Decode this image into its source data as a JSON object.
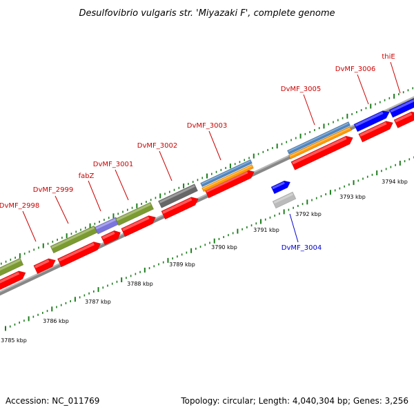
{
  "title": "Desulfovibrio vulgaris str. 'Miyazaki F', complete genome",
  "footer": {
    "accession": "Accession: NC_011769",
    "summary": "Topology: circular; Length: 4,040,304 bp; Genes: 3,256"
  },
  "colors": {
    "gene": "#ff0000",
    "gene_blue": "#0000ff",
    "gene_grey": "#bbbbbb",
    "feature_green": "#7b9a30",
    "feature_purple": "#7a74dd",
    "feature_darkgrey": "#676767",
    "feature_steelblue": "#4f86c0",
    "feature_orange": "#ff9a00",
    "backbone": "#888888",
    "tick": "#1c7d1c",
    "label_red": "#cc0000",
    "label_blue": "#0000cc"
  },
  "scale_labels": [
    "3785 kbp",
    "3786 kbp",
    "3787 kbp",
    "3788 kbp",
    "3789 kbp",
    "3790 kbp",
    "3791 kbp",
    "3792 kbp",
    "3793 kbp",
    "3794 kbp"
  ],
  "gene_labels": [
    {
      "name": "DvMF_2998",
      "color": "red"
    },
    {
      "name": "DvMF_2999",
      "color": "red"
    },
    {
      "name": "fabZ",
      "color": "red"
    },
    {
      "name": "DvMF_3001",
      "color": "red"
    },
    {
      "name": "DvMF_3002",
      "color": "red"
    },
    {
      "name": "DvMF_3003",
      "color": "red"
    },
    {
      "name": "DvMF_3004",
      "color": "blue"
    },
    {
      "name": "DvMF_3005",
      "color": "red"
    },
    {
      "name": "DvMF_3006",
      "color": "red"
    },
    {
      "name": "thiE",
      "color": "red"
    }
  ]
}
